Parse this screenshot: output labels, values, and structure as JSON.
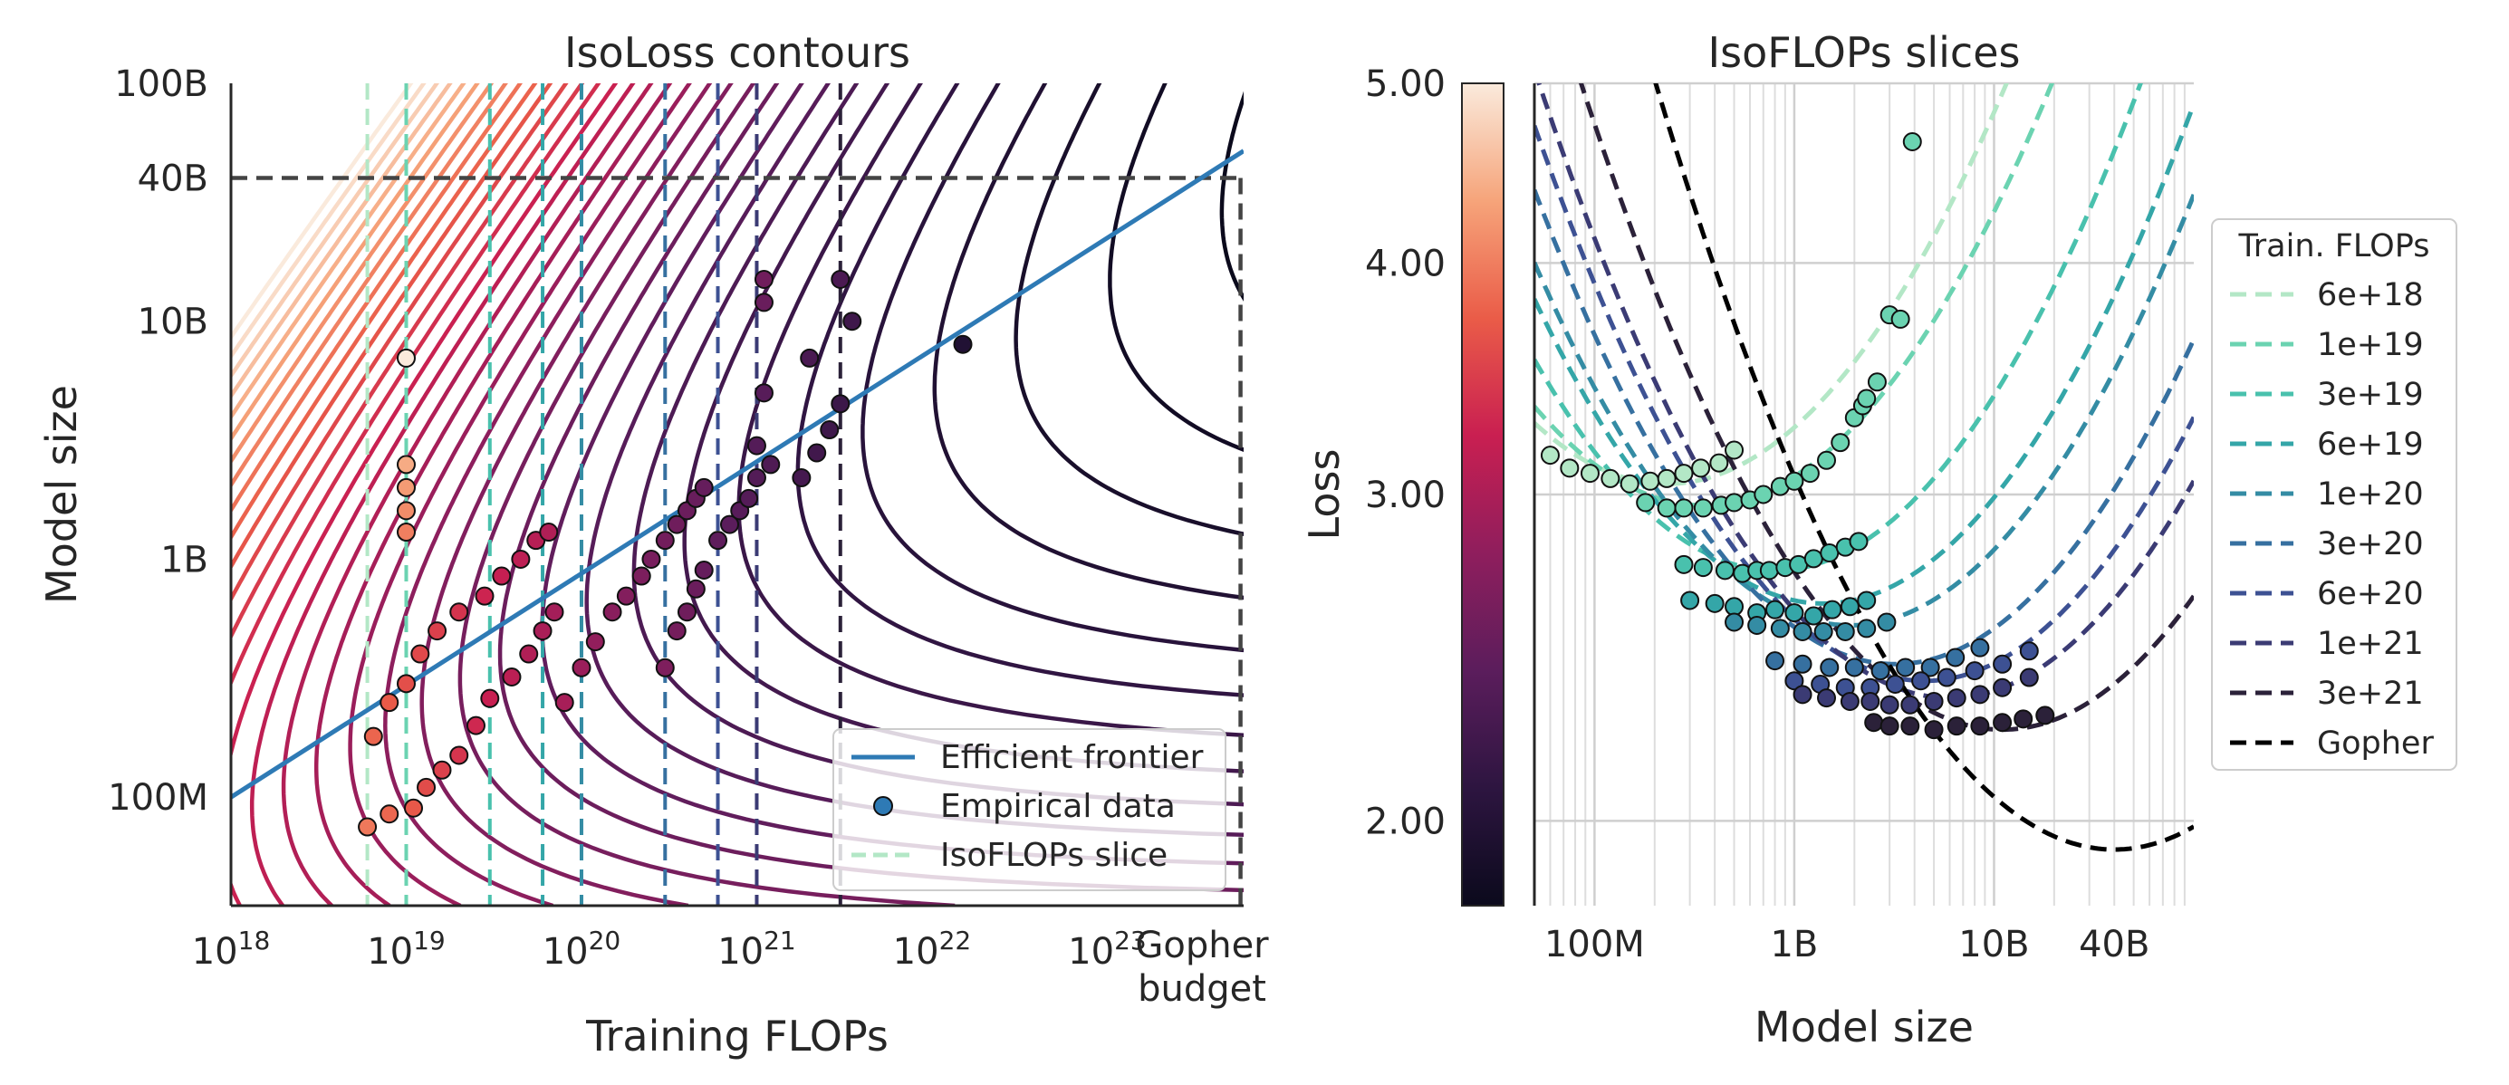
{
  "chart_data": [
    {
      "type": "line",
      "title": "IsoLoss contours",
      "xlabel": "Training FLOPs",
      "ylabel": "Model size",
      "x_scale": "log",
      "y_scale": "log",
      "xlim": [
        1e+18,
        6e+23
      ],
      "ylim": [
        35000000.0,
        100000000000.0
      ],
      "x_ticks": [
        {
          "value": 1e+18,
          "base": "10",
          "exp": "18"
        },
        {
          "value": 1e+19,
          "base": "10",
          "exp": "19"
        },
        {
          "value": 1e+20,
          "base": "10",
          "exp": "20"
        },
        {
          "value": 1e+21,
          "base": "10",
          "exp": "21"
        },
        {
          "value": 1e+22,
          "base": "10",
          "exp": "22"
        },
        {
          "value": 1e+23,
          "base": "10",
          "exp": "23"
        }
      ],
      "gopher_budget": {
        "value": 5.76e+23,
        "label_line1": "Gopher",
        "label_line2": "budget",
        "model_size": 40000000000.0
      },
      "y_ticks": [
        {
          "value": 100000000000.0,
          "label": "100B"
        },
        {
          "value": 40000000000.0,
          "label": "40B"
        },
        {
          "value": 10000000000.0,
          "label": "10B"
        },
        {
          "value": 1000000000.0,
          "label": "1B"
        },
        {
          "value": 100000000.0,
          "label": "100M"
        }
      ],
      "legend": {
        "placement": "lower-right",
        "entries": [
          "Efficient frontier",
          "Empirical data",
          "IsoFLOPs slice"
        ]
      },
      "efficient_frontier": {
        "x": [
          1e+18,
          6e+23
        ],
        "y": [
          100000000.0,
          52000000000.0
        ],
        "color": "#2e7ab5"
      },
      "isoflops_slice_budgets": [
        6e+18,
        1e+19,
        3e+19,
        6e+19,
        1e+20,
        3e+20,
        6e+20,
        1e+21,
        3e+21
      ],
      "contour_colormap": [
        "#faeadc",
        "#f6a47a",
        "#ea5c48",
        "#c91f51",
        "#8f1e5d",
        "#5b1d5c",
        "#2d1540",
        "#0b0a1c"
      ],
      "empirical_points": [
        [
          6e+18,
          75000000.0
        ],
        [
          8e+18,
          85000000.0
        ],
        [
          1.1e+19,
          90000000.0
        ],
        [
          1.3e+19,
          110000000.0
        ],
        [
          1.6e+19,
          130000000.0
        ],
        [
          2e+19,
          150000000.0
        ],
        [
          6.5e+18,
          180000000.0
        ],
        [
          8e+18,
          250000000.0
        ],
        [
          1e+19,
          300000000.0
        ],
        [
          1.2e+19,
          400000000.0
        ],
        [
          1.5e+19,
          500000000.0
        ],
        [
          2e+19,
          600000000.0
        ],
        [
          1e+19,
          1300000000.0
        ],
        [
          1e+19,
          1600000000.0
        ],
        [
          1e+19,
          2000000000.0
        ],
        [
          1e+19,
          2500000000.0
        ],
        [
          1e+19,
          7000000000.0
        ],
        [
          2.5e+19,
          200000000.0
        ],
        [
          3e+19,
          260000000.0
        ],
        [
          4e+19,
          320000000.0
        ],
        [
          5e+19,
          400000000.0
        ],
        [
          6e+19,
          500000000.0
        ],
        [
          7e+19,
          600000000.0
        ],
        [
          2.8e+19,
          700000000.0
        ],
        [
          3.5e+19,
          850000000.0
        ],
        [
          4.5e+19,
          1000000000.0
        ],
        [
          5.5e+19,
          1200000000.0
        ],
        [
          6.5e+19,
          1300000000.0
        ],
        [
          8e+19,
          250000000.0
        ],
        [
          1e+20,
          350000000.0
        ],
        [
          1.2e+20,
          450000000.0
        ],
        [
          1.5e+20,
          600000000.0
        ],
        [
          1.8e+20,
          700000000.0
        ],
        [
          2.2e+20,
          850000000.0
        ],
        [
          2.5e+20,
          1000000000.0
        ],
        [
          3e+20,
          1200000000.0
        ],
        [
          3.5e+20,
          1400000000.0
        ],
        [
          4e+20,
          1600000000.0
        ],
        [
          4.5e+20,
          1800000000.0
        ],
        [
          5e+20,
          2000000000.0
        ],
        [
          3e+20,
          350000000.0
        ],
        [
          3.5e+20,
          500000000.0
        ],
        [
          4e+20,
          600000000.0
        ],
        [
          4.5e+20,
          750000000.0
        ],
        [
          5e+20,
          900000000.0
        ],
        [
          6e+20,
          1200000000.0
        ],
        [
          7e+20,
          1400000000.0
        ],
        [
          8e+20,
          1600000000.0
        ],
        [
          9e+20,
          1800000000.0
        ],
        [
          1e+21,
          2200000000.0
        ],
        [
          1.2e+21,
          2500000000.0
        ],
        [
          1e+21,
          3000000000.0
        ],
        [
          1.1e+21,
          5000000000.0
        ],
        [
          1.1e+21,
          12000000000.0
        ],
        [
          1.1e+21,
          15000000000.0
        ],
        [
          1.8e+21,
          2200000000.0
        ],
        [
          2.2e+21,
          2800000000.0
        ],
        [
          2.6e+21,
          3500000000.0
        ],
        [
          3e+21,
          4500000000.0
        ],
        [
          3e+21,
          15000000000.0
        ],
        [
          3.5e+21,
          10000000000.0
        ],
        [
          2e+21,
          7000000000.0
        ],
        [
          1.5e+22,
          8000000000.0
        ]
      ]
    },
    {
      "type": "line",
      "title": "IsoFLOPs slices",
      "xlabel": "Model size",
      "ylabel": "Loss",
      "x_scale": "log",
      "y_scale": "log",
      "xlim": [
        50000000.0,
        100000000000.0
      ],
      "ylim": [
        1.8,
        5.0
      ],
      "x_ticks": [
        {
          "value": 100000000.0,
          "label": "100M"
        },
        {
          "value": 1000000000.0,
          "label": "1B"
        },
        {
          "value": 10000000000.0,
          "label": "10B"
        },
        {
          "value": 40000000000.0,
          "label": "40B"
        }
      ],
      "y_ticks": [
        {
          "value": 5.0,
          "label": "5.00"
        },
        {
          "value": 4.0,
          "label": "4.00"
        },
        {
          "value": 3.0,
          "label": "3.00"
        },
        {
          "value": 2.0,
          "label": "2.00"
        }
      ],
      "grid": true,
      "legend": {
        "title": "Train. FLOPs",
        "placement": "right"
      },
      "series": [
        {
          "name": "6e+18",
          "color": "#b3e7c6",
          "fit": {
            "lmin": 3.04,
            "nopt": 230000000.0,
            "k": 0.4
          },
          "points": [
            [
              60000000.0,
              3.15
            ],
            [
              75000000.0,
              3.1
            ],
            [
              95000000.0,
              3.08
            ],
            [
              120000000.0,
              3.06
            ],
            [
              150000000.0,
              3.04
            ],
            [
              190000000.0,
              3.05
            ],
            [
              230000000.0,
              3.06
            ],
            [
              280000000.0,
              3.08
            ],
            [
              340000000.0,
              3.1
            ],
            [
              420000000.0,
              3.12
            ],
            [
              500000000.0,
              3.17
            ]
          ]
        },
        {
          "name": "1e+19",
          "color": "#6bd3b1",
          "fit": {
            "lmin": 2.96,
            "nopt": 350000000.0,
            "k": 0.4
          },
          "points": [
            [
              180000000.0,
              2.97
            ],
            [
              230000000.0,
              2.95
            ],
            [
              280000000.0,
              2.95
            ],
            [
              350000000.0,
              2.95
            ],
            [
              430000000.0,
              2.96
            ],
            [
              500000000.0,
              2.97
            ],
            [
              600000000.0,
              2.98
            ],
            [
              700000000.0,
              3.0
            ],
            [
              850000000.0,
              3.03
            ],
            [
              1000000000.0,
              3.05
            ],
            [
              1200000000.0,
              3.08
            ],
            [
              1450000000.0,
              3.13
            ],
            [
              1700000000.0,
              3.2
            ],
            [
              2000000000.0,
              3.3
            ],
            [
              2200000000.0,
              3.35
            ],
            [
              2300000000.0,
              3.38
            ],
            [
              2600000000.0,
              3.45
            ],
            [
              3000000000.0,
              3.75
            ],
            [
              3400000000.0,
              3.73
            ],
            [
              3900000000.0,
              4.65
            ]
          ]
        },
        {
          "name": "3e+19",
          "color": "#49c1ad",
          "fit": {
            "lmin": 2.73,
            "nopt": 800000000.0,
            "k": 0.42
          },
          "points": [
            [
              280000000.0,
              2.75
            ],
            [
              350000000.0,
              2.74
            ],
            [
              450000000.0,
              2.73
            ],
            [
              550000000.0,
              2.72
            ],
            [
              650000000.0,
              2.73
            ],
            [
              750000000.0,
              2.73
            ],
            [
              900000000.0,
              2.74
            ],
            [
              1050000000.0,
              2.75
            ],
            [
              1250000000.0,
              2.77
            ],
            [
              1500000000.0,
              2.79
            ],
            [
              1800000000.0,
              2.81
            ],
            [
              2100000000.0,
              2.83
            ]
          ]
        },
        {
          "name": "6e+19",
          "color": "#34a6a8",
          "fit": {
            "lmin": 2.62,
            "nopt": 1400000000.0,
            "k": 0.42
          },
          "points": [
            [
              300000000.0,
              2.63
            ],
            [
              400000000.0,
              2.62
            ],
            [
              500000000.0,
              2.61
            ],
            [
              650000000.0,
              2.59
            ],
            [
              800000000.0,
              2.6
            ],
            [
              1000000000.0,
              2.59
            ],
            [
              1250000000.0,
              2.58
            ],
            [
              1550000000.0,
              2.6
            ],
            [
              1900000000.0,
              2.61
            ],
            [
              2300000000.0,
              2.63
            ]
          ]
        },
        {
          "name": "1e+20",
          "color": "#348ca4",
          "fit": {
            "lmin": 2.55,
            "nopt": 1900000000.0,
            "k": 0.42
          },
          "points": [
            [
              500000000.0,
              2.56
            ],
            [
              650000000.0,
              2.55
            ],
            [
              850000000.0,
              2.54
            ],
            [
              1100000000.0,
              2.53
            ],
            [
              1400000000.0,
              2.53
            ],
            [
              1800000000.0,
              2.53
            ],
            [
              2300000000.0,
              2.54
            ],
            [
              2900000000.0,
              2.56
            ]
          ]
        },
        {
          "name": "3e+20",
          "color": "#3670a0",
          "fit": {
            "lmin": 2.43,
            "nopt": 3200000000.0,
            "k": 0.42
          },
          "points": [
            [
              800000000.0,
              2.44
            ],
            [
              1100000000.0,
              2.43
            ],
            [
              1500000000.0,
              2.42
            ],
            [
              2000000000.0,
              2.42
            ],
            [
              2700000000.0,
              2.41
            ],
            [
              3600000000.0,
              2.42
            ],
            [
              4800000000.0,
              2.42
            ],
            [
              6400000000.0,
              2.45
            ],
            [
              8500000000.0,
              2.48
            ]
          ]
        },
        {
          "name": "6e+20",
          "color": "#3d5193",
          "fit": {
            "lmin": 2.38,
            "nopt": 4500000000.0,
            "k": 0.42
          },
          "points": [
            [
              1000000000.0,
              2.38
            ],
            [
              1350000000.0,
              2.37
            ],
            [
              1800000000.0,
              2.36
            ],
            [
              2400000000.0,
              2.36
            ],
            [
              3200000000.0,
              2.37
            ],
            [
              4300000000.0,
              2.38
            ],
            [
              5800000000.0,
              2.39
            ],
            [
              8000000000.0,
              2.41
            ],
            [
              11000000000.0,
              2.43
            ],
            [
              15000000000.0,
              2.47
            ]
          ]
        },
        {
          "name": "1e+21",
          "color": "#3b3b74",
          "fit": {
            "lmin": 2.33,
            "nopt": 6000000000.0,
            "k": 0.42
          },
          "points": [
            [
              1100000000.0,
              2.34
            ],
            [
              1450000000.0,
              2.33
            ],
            [
              1900000000.0,
              2.32
            ],
            [
              2400000000.0,
              2.32
            ],
            [
              3000000000.0,
              2.31
            ],
            [
              3800000000.0,
              2.31
            ],
            [
              5000000000.0,
              2.32
            ],
            [
              6500000000.0,
              2.33
            ],
            [
              8500000000.0,
              2.34
            ],
            [
              11000000000.0,
              2.36
            ],
            [
              15000000000.0,
              2.39
            ]
          ]
        },
        {
          "name": "3e+21",
          "color": "#2b2139",
          "fit": {
            "lmin": 2.24,
            "nopt": 11000000000.0,
            "k": 0.42
          },
          "points": [
            [
              2500000000.0,
              2.26
            ],
            [
              3000000000.0,
              2.25
            ],
            [
              3800000000.0,
              2.25
            ],
            [
              5000000000.0,
              2.24
            ],
            [
              6500000000.0,
              2.25
            ],
            [
              8500000000.0,
              2.25
            ],
            [
              11000000000.0,
              2.26
            ],
            [
              14000000000.0,
              2.27
            ],
            [
              18000000000.0,
              2.28
            ]
          ]
        },
        {
          "name": "Gopher",
          "color": "#000000",
          "fit": {
            "lmin": 1.93,
            "nopt": 40000000000.0,
            "k": 0.42
          },
          "points": []
        }
      ]
    }
  ],
  "colorbar": {
    "colors": [
      "#0b0a1c",
      "#2d1540",
      "#5b1d5c",
      "#8f1e5d",
      "#c91f51",
      "#ea5c48",
      "#f6a47a",
      "#faeadc"
    ]
  }
}
